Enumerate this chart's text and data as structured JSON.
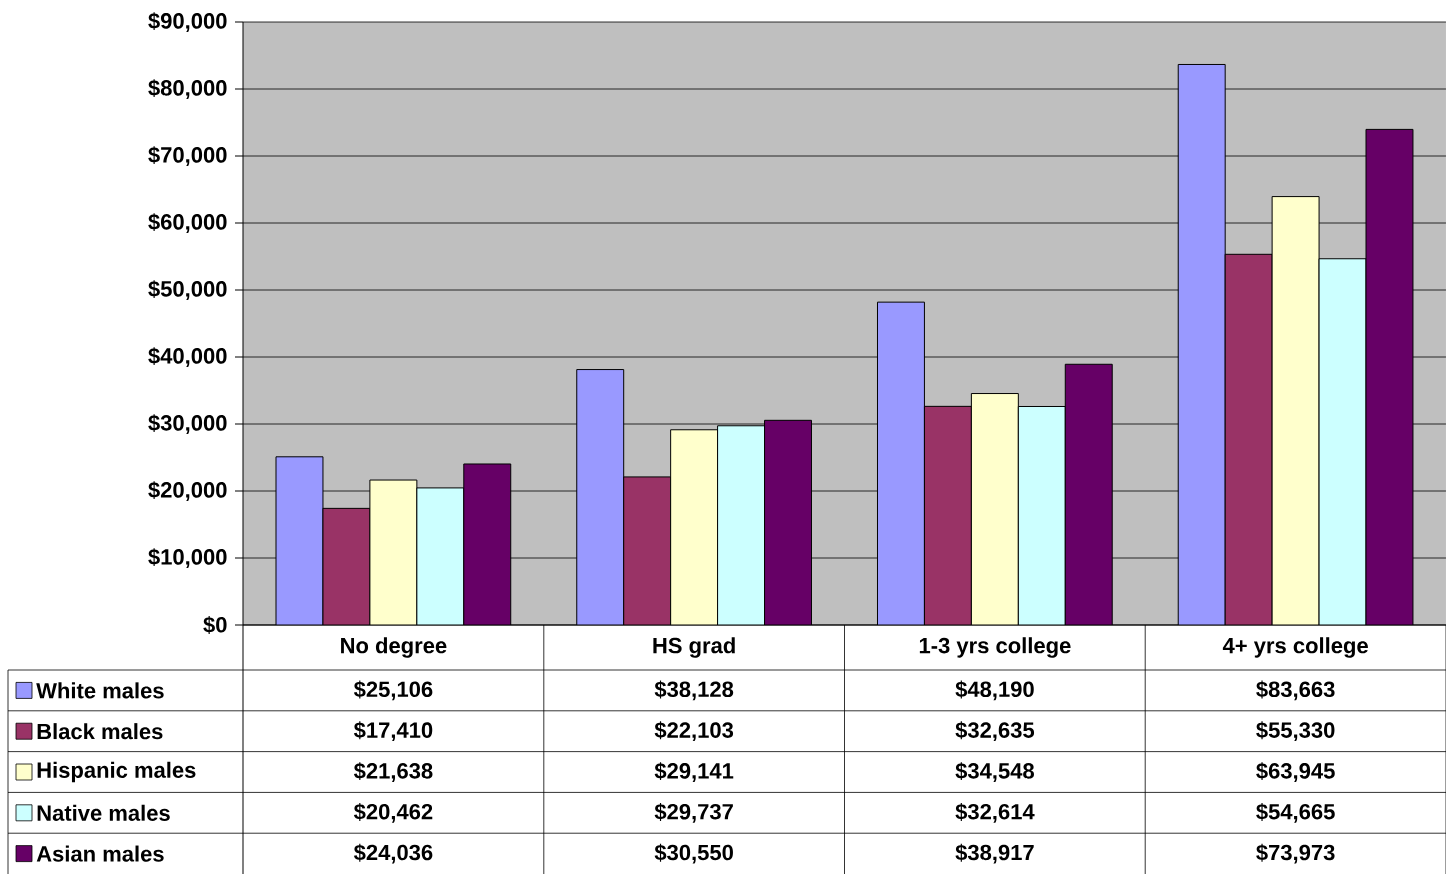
{
  "chart_data": {
    "type": "bar",
    "categories": [
      "No degree",
      "HS grad",
      "1-3 yrs college",
      "4+ yrs college"
    ],
    "series": [
      {
        "name": "White males",
        "color": "#9999ff",
        "values": [
          25106,
          38128,
          48190,
          83663
        ]
      },
      {
        "name": "Black males",
        "color": "#993366",
        "values": [
          17410,
          22103,
          32635,
          55330
        ]
      },
      {
        "name": "Hispanic males",
        "color": "#ffffcc",
        "values": [
          21638,
          29141,
          34548,
          63945
        ]
      },
      {
        "name": "Native males",
        "color": "#ccffff",
        "values": [
          20462,
          29737,
          32614,
          54665
        ]
      },
      {
        "name": "Asian males",
        "color": "#660066",
        "values": [
          24036,
          30550,
          38917,
          73973
        ]
      }
    ],
    "ylim": [
      0,
      90000
    ],
    "yticks": [
      {
        "value": 0,
        "label": "$0"
      },
      {
        "value": 10000,
        "label": "$10,000"
      },
      {
        "value": 20000,
        "label": "$20,000"
      },
      {
        "value": 30000,
        "label": "$30,000"
      },
      {
        "value": 40000,
        "label": "$40,000"
      },
      {
        "value": 50000,
        "label": "$50,000"
      },
      {
        "value": 60000,
        "label": "$60,000"
      },
      {
        "value": 70000,
        "label": "$70,000"
      },
      {
        "value": 80000,
        "label": "$80,000"
      },
      {
        "value": 90000,
        "label": "$90,000"
      }
    ],
    "value_labels": [
      [
        "$25,106",
        "$38,128",
        "$48,190",
        "$83,663"
      ],
      [
        "$17,410",
        "$22,103",
        "$32,635",
        "$55,330"
      ],
      [
        "$21,638",
        "$29,141",
        "$34,548",
        "$63,945"
      ],
      [
        "$20,462",
        "$29,737",
        "$32,614",
        "$54,665"
      ],
      [
        "$24,036",
        "$30,550",
        "$38,917",
        "$73,973"
      ]
    ],
    "grid": "y",
    "legend": "bottom"
  }
}
